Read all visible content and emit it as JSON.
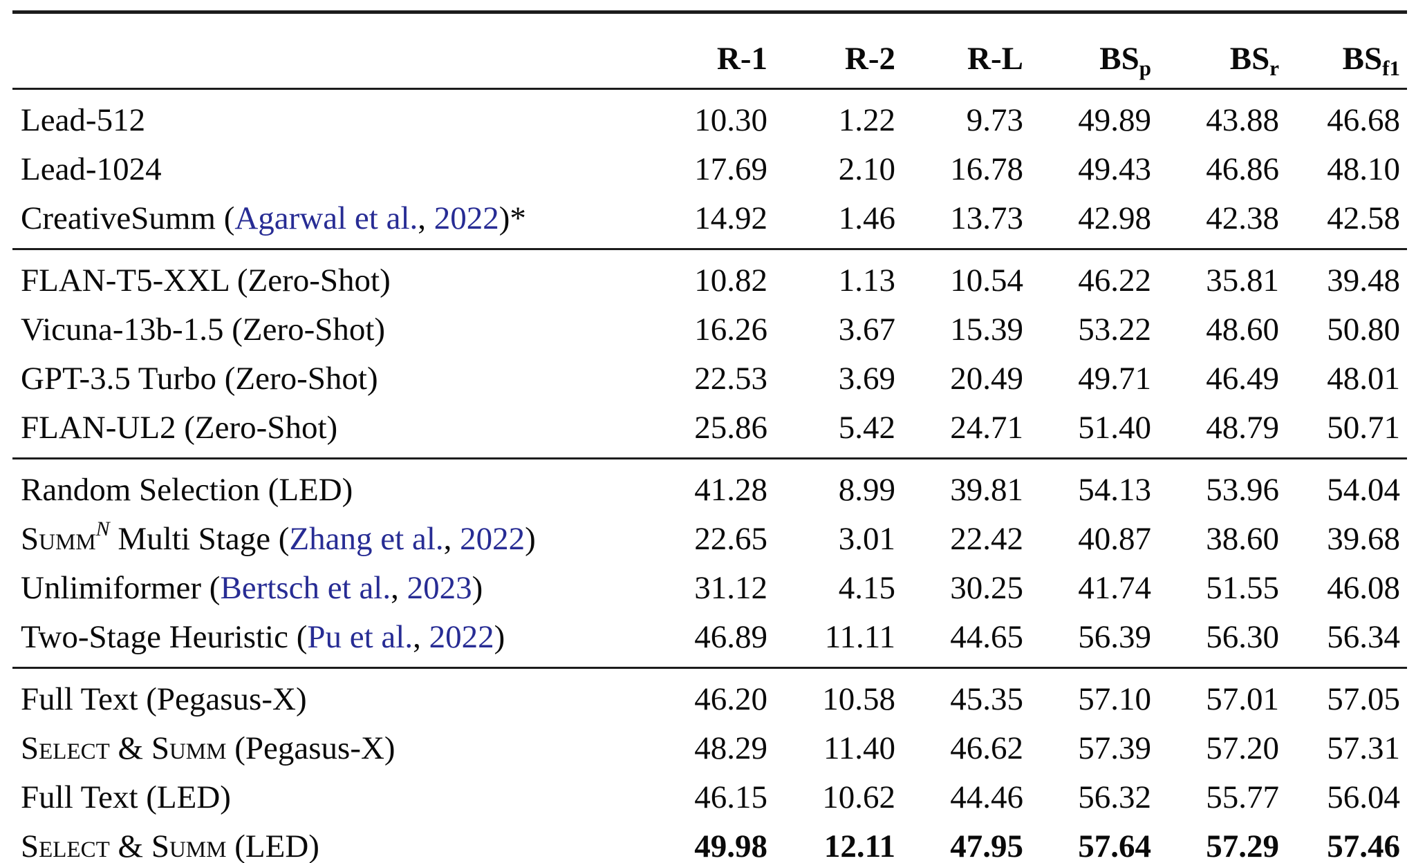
{
  "table": {
    "colors": {
      "citation_blue": "#272c94",
      "rule": "#1c1c1c",
      "text": "#0a0a0a"
    },
    "corner_label": "",
    "columns": [
      {
        "label": "R-1",
        "sub": ""
      },
      {
        "label": "R-2",
        "sub": ""
      },
      {
        "label": "R-L",
        "sub": ""
      },
      {
        "label": "BS",
        "sub": "p"
      },
      {
        "label": "BS",
        "sub": "r"
      },
      {
        "label": "BS",
        "sub": "f1"
      }
    ],
    "groups": [
      {
        "name": "baselines",
        "rows": [
          {
            "label": [
              {
                "t": "text",
                "v": "Lead-512"
              }
            ],
            "values": [
              "10.30",
              "1.22",
              "9.73",
              "49.89",
              "43.88",
              "46.68"
            ],
            "bold_values": false
          },
          {
            "label": [
              {
                "t": "text",
                "v": "Lead-1024"
              }
            ],
            "values": [
              "17.69",
              "2.10",
              "16.78",
              "49.43",
              "46.86",
              "48.10"
            ],
            "bold_values": false
          },
          {
            "label": [
              {
                "t": "text",
                "v": "CreativeSumm ("
              },
              {
                "t": "cite",
                "v": "Agarwal et al."
              },
              {
                "t": "text",
                "v": ", "
              },
              {
                "t": "cite",
                "v": "2022"
              },
              {
                "t": "text",
                "v": ")*"
              }
            ],
            "values": [
              "14.92",
              "1.46",
              "13.73",
              "42.98",
              "42.38",
              "42.58"
            ],
            "bold_values": false
          }
        ]
      },
      {
        "name": "zero-shot",
        "rows": [
          {
            "label": [
              {
                "t": "text",
                "v": "FLAN-T5-XXL (Zero-Shot)"
              }
            ],
            "values": [
              "10.82",
              "1.13",
              "10.54",
              "46.22",
              "35.81",
              "39.48"
            ],
            "bold_values": false
          },
          {
            "label": [
              {
                "t": "text",
                "v": "Vicuna-13b-1.5 (Zero-Shot)"
              }
            ],
            "values": [
              "16.26",
              "3.67",
              "15.39",
              "53.22",
              "48.60",
              "50.80"
            ],
            "bold_values": false
          },
          {
            "label": [
              {
                "t": "text",
                "v": "GPT-3.5 Turbo (Zero-Shot)"
              }
            ],
            "values": [
              "22.53",
              "3.69",
              "20.49",
              "49.71",
              "46.49",
              "48.01"
            ],
            "bold_values": false
          },
          {
            "label": [
              {
                "t": "text",
                "v": "FLAN-UL2 (Zero-Shot)"
              }
            ],
            "values": [
              "25.86",
              "5.42",
              "24.71",
              "51.40",
              "48.79",
              "50.71"
            ],
            "bold_values": false
          }
        ]
      },
      {
        "name": "long-document-methods",
        "rows": [
          {
            "label": [
              {
                "t": "text",
                "v": "Random Selection (LED)"
              }
            ],
            "values": [
              "41.28",
              "8.99",
              "39.81",
              "54.13",
              "53.96",
              "54.04"
            ],
            "bold_values": false
          },
          {
            "label": [
              {
                "t": "sc",
                "v": "Summ"
              },
              {
                "t": "sup",
                "v": "N"
              },
              {
                "t": "text",
                "v": " Multi Stage ("
              },
              {
                "t": "cite",
                "v": "Zhang et al."
              },
              {
                "t": "text",
                "v": ", "
              },
              {
                "t": "cite",
                "v": "2022"
              },
              {
                "t": "text",
                "v": ")"
              }
            ],
            "values": [
              "22.65",
              "3.01",
              "22.42",
              "40.87",
              "38.60",
              "39.68"
            ],
            "bold_values": false
          },
          {
            "label": [
              {
                "t": "text",
                "v": "Unlimiformer ("
              },
              {
                "t": "cite",
                "v": "Bertsch et al."
              },
              {
                "t": "text",
                "v": ", "
              },
              {
                "t": "cite",
                "v": "2023"
              },
              {
                "t": "text",
                "v": ")"
              }
            ],
            "values": [
              "31.12",
              "4.15",
              "30.25",
              "41.74",
              "51.55",
              "46.08"
            ],
            "bold_values": false
          },
          {
            "label": [
              {
                "t": "text",
                "v": "Two-Stage Heuristic ("
              },
              {
                "t": "cite",
                "v": "Pu et al."
              },
              {
                "t": "text",
                "v": ", "
              },
              {
                "t": "cite",
                "v": "2022"
              },
              {
                "t": "text",
                "v": ")"
              }
            ],
            "values": [
              "46.89",
              "11.11",
              "44.65",
              "56.39",
              "56.30",
              "56.34"
            ],
            "bold_values": false
          }
        ]
      },
      {
        "name": "ours",
        "rows": [
          {
            "label": [
              {
                "t": "text",
                "v": "Full Text (Pegasus-X)"
              }
            ],
            "values": [
              "46.20",
              "10.58",
              "45.35",
              "57.10",
              "57.01",
              "57.05"
            ],
            "bold_values": false
          },
          {
            "label": [
              {
                "t": "sc",
                "v": "Select & Summ"
              },
              {
                "t": "text",
                "v": " (Pegasus-X)"
              }
            ],
            "values": [
              "48.29",
              "11.40",
              "46.62",
              "57.39",
              "57.20",
              "57.31"
            ],
            "bold_values": false
          },
          {
            "label": [
              {
                "t": "text",
                "v": "Full Text (LED)"
              }
            ],
            "values": [
              "46.15",
              "10.62",
              "44.46",
              "56.32",
              "55.77",
              "56.04"
            ],
            "bold_values": false
          },
          {
            "label": [
              {
                "t": "sc",
                "v": "Select & Summ"
              },
              {
                "t": "text",
                "v": " (LED)"
              }
            ],
            "values": [
              "49.98",
              "12.11",
              "47.95",
              "57.64",
              "57.29",
              "57.46"
            ],
            "bold_values": true
          }
        ]
      }
    ]
  }
}
